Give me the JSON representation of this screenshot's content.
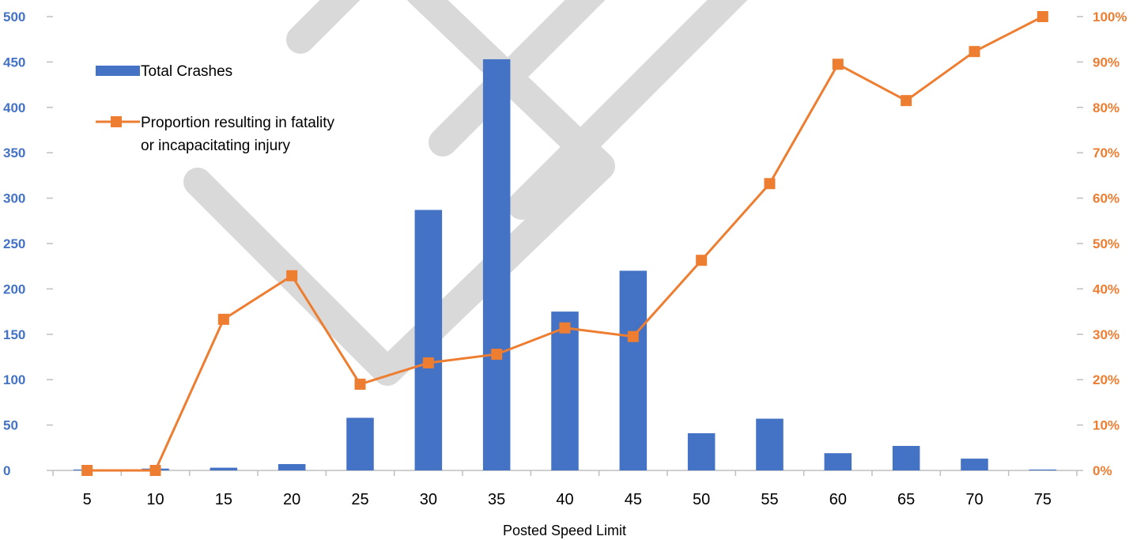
{
  "chart_data": {
    "type": "bar",
    "xlabel": "Posted Speed Limit",
    "categories": [
      "5",
      "10",
      "15",
      "20",
      "25",
      "30",
      "35",
      "40",
      "45",
      "50",
      "55",
      "60",
      "65",
      "70",
      "75"
    ],
    "series": [
      {
        "name": "Total Crashes",
        "type": "bar",
        "axis": "left",
        "color": "#4472C4",
        "values": [
          1,
          2,
          3,
          7,
          58,
          287,
          453,
          175,
          220,
          41,
          57,
          19,
          27,
          13,
          1
        ]
      },
      {
        "name": "Proportion resulting in fatality or incapacitating injury",
        "type": "line",
        "axis": "right",
        "color": "#ED7D31",
        "values": [
          0,
          0,
          0.333,
          0.429,
          0.19,
          0.237,
          0.256,
          0.314,
          0.295,
          0.463,
          0.632,
          0.895,
          0.815,
          0.923,
          1.0
        ]
      }
    ],
    "y_left": {
      "ylim": [
        0,
        500
      ],
      "ticks": [
        "0",
        "50",
        "100",
        "150",
        "200",
        "250",
        "300",
        "350",
        "400",
        "450",
        "500"
      ],
      "color": "#4472C4"
    },
    "y_right": {
      "ylim": [
        0,
        1
      ],
      "ticks": [
        "0%",
        "10%",
        "20%",
        "30%",
        "40%",
        "50%",
        "60%",
        "70%",
        "80%",
        "90%",
        "100%"
      ],
      "color": "#ED7D31"
    },
    "legend": {
      "placement": "top-left",
      "entries": [
        "Total Crashes",
        "Proportion resulting in fatality",
        "or incapacitating injury"
      ]
    },
    "grid": false
  }
}
